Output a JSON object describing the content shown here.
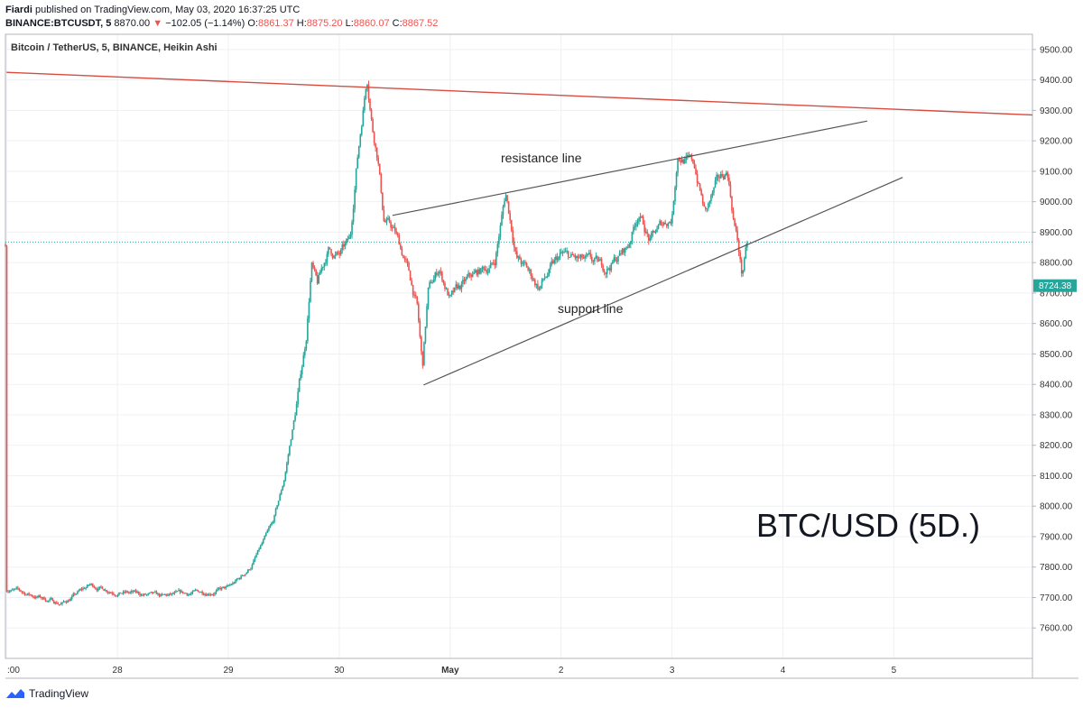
{
  "header": {
    "author": "Fiardi",
    "published": "published on TradingView.com, May 03, 2020 16:37:25 UTC",
    "symbol": "BINANCE:BTCUSDT, 5",
    "last": "8870.00",
    "change": "−102.05 (−1.14%)",
    "open_label": "O:",
    "open": "8861.37",
    "high_label": "H:",
    "high": "8875.20",
    "low_label": "L:",
    "low": "8860.07",
    "close_label": "C:",
    "close": "8867.52"
  },
  "legend_title": "Bitcoin / TetherUS, 5, BINANCE, Heikin Ashi",
  "watermark": "BTC/USD (5D.)",
  "brand": "TradingView",
  "annotations": {
    "resistance": "resistance line",
    "support": "support line"
  },
  "current_price_label": "8724.38",
  "colors": {
    "up": "#26a69a",
    "down": "#ef5350",
    "trend_red": "#d84b3f",
    "drawn_line": "#555555",
    "price_tag": "#26a69a",
    "dotted": "#26a69a"
  },
  "chart_data": {
    "type": "candlestick",
    "ylim": [
      7500,
      9550
    ],
    "y_ticks": [
      "9500.00",
      "9400.00",
      "9300.00",
      "9200.00",
      "9100.00",
      "9000.00",
      "8900.00",
      "8800.00",
      "8700.00",
      "8600.00",
      "8500.00",
      "8400.00",
      "8300.00",
      "8200.00",
      "8100.00",
      "8000.00",
      "7900.00",
      "7800.00",
      "7700.00",
      "7600.00"
    ],
    "x_ticks": [
      ":00",
      "28",
      "29",
      "30",
      "May",
      "2",
      "3",
      "4",
      "5"
    ],
    "x_tick_days": [
      27,
      28,
      29,
      30,
      31,
      32,
      33,
      34,
      35
    ],
    "xlim_days": [
      26.99,
      36.25
    ],
    "last_day": 33.68,
    "path": [
      [
        27.0,
        7730
      ],
      [
        27.5,
        7680
      ],
      [
        27.75,
        7740
      ],
      [
        28.0,
        7720
      ],
      [
        28.4,
        7700
      ],
      [
        28.8,
        7720
      ],
      [
        29.0,
        7730
      ],
      [
        29.1,
        7760
      ],
      [
        29.2,
        7800
      ],
      [
        29.3,
        7870
      ],
      [
        29.4,
        7940
      ],
      [
        29.5,
        8080
      ],
      [
        29.6,
        8300
      ],
      [
        29.7,
        8550
      ],
      [
        29.75,
        8800
      ],
      [
        29.8,
        8720
      ],
      [
        29.9,
        8840
      ],
      [
        30.0,
        8820
      ],
      [
        30.1,
        8870
      ],
      [
        30.15,
        9100
      ],
      [
        30.25,
        9420
      ],
      [
        30.3,
        9250
      ],
      [
        30.35,
        9150
      ],
      [
        30.4,
        8950
      ],
      [
        30.5,
        8900
      ],
      [
        30.6,
        8800
      ],
      [
        30.7,
        8660
      ],
      [
        30.75,
        8450
      ],
      [
        30.8,
        8700
      ],
      [
        30.9,
        8780
      ],
      [
        31.0,
        8680
      ],
      [
        31.2,
        8750
      ],
      [
        31.4,
        8800
      ],
      [
        31.5,
        9030
      ],
      [
        31.6,
        8820
      ],
      [
        31.8,
        8720
      ],
      [
        32.0,
        8820
      ],
      [
        32.2,
        8800
      ],
      [
        32.4,
        8780
      ],
      [
        32.6,
        8850
      ],
      [
        32.7,
        8970
      ],
      [
        32.8,
        8870
      ],
      [
        32.9,
        8920
      ],
      [
        33.0,
        8950
      ],
      [
        33.05,
        9160
      ],
      [
        33.2,
        9120
      ],
      [
        33.3,
        8960
      ],
      [
        33.4,
        9050
      ],
      [
        33.5,
        9100
      ],
      [
        33.55,
        8960
      ],
      [
        33.6,
        8850
      ],
      [
        33.63,
        8760
      ],
      [
        33.68,
        8860
      ]
    ],
    "trendlines": [
      {
        "name": "red-trendline",
        "color_key": "trend_red",
        "points": [
          [
            27.0,
            9425
          ],
          [
            36.25,
            9285
          ]
        ]
      },
      {
        "name": "resistance-trendline",
        "color_key": "drawn_line",
        "points": [
          [
            30.48,
            8955
          ],
          [
            34.76,
            9265
          ]
        ]
      },
      {
        "name": "support-trendline",
        "color_key": "drawn_line",
        "points": [
          [
            30.76,
            8398
          ],
          [
            35.08,
            9080
          ]
        ]
      }
    ]
  }
}
